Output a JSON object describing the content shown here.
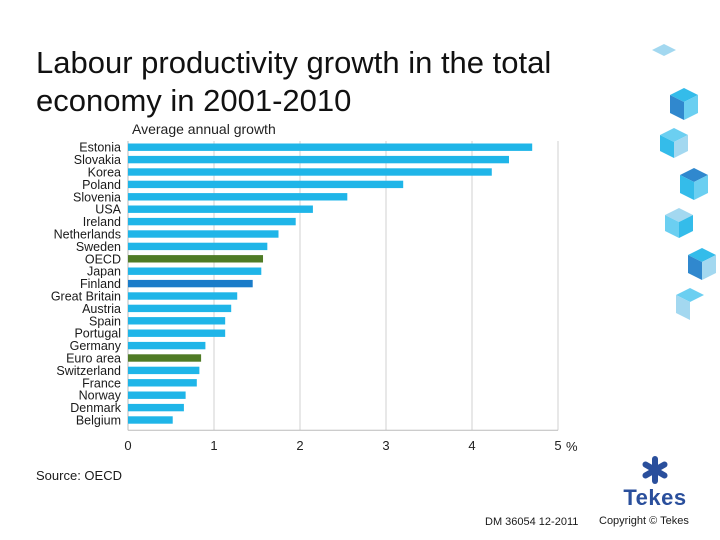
{
  "title": "Labour productivity growth in the total economy in 2001-2010",
  "subtitle": "Average annual growth",
  "source": "Source: OECD",
  "footer": {
    "code": "DM 36054 12-2011",
    "copyright": "Copyright © Tekes"
  },
  "logo": {
    "text": "Tekes",
    "icon": "asterisk-logo-icon"
  },
  "colors": {
    "bar": "#1fb5e8",
    "oecd_euro": "#4f7b26",
    "finland": "#1a7cc9",
    "logo": "#2a4f9c"
  },
  "chart_data": {
    "type": "bar",
    "orientation": "horizontal",
    "title": "Labour productivity growth in the total economy in 2001-2010",
    "subtitle": "Average annual growth",
    "xlabel": "%",
    "xlim": [
      0,
      5
    ],
    "xticks": [
      "0",
      "1",
      "2",
      "3",
      "4",
      "5"
    ],
    "grid": true,
    "categories": [
      "Estonia",
      "Slovakia",
      "Korea",
      "Poland",
      "Slovenia",
      "USA",
      "Ireland",
      "Netherlands",
      "Sweden",
      "OECD",
      "Japan",
      "Finland",
      "Great Britain",
      "Austria",
      "Spain",
      "Portugal",
      "Germany",
      "Euro area",
      "Switzerland",
      "France",
      "Norway",
      "Denmark",
      "Belgium"
    ],
    "values": [
      4.7,
      4.43,
      4.23,
      3.2,
      2.55,
      2.15,
      1.95,
      1.75,
      1.62,
      1.57,
      1.55,
      1.45,
      1.27,
      1.2,
      1.13,
      1.13,
      0.9,
      0.85,
      0.83,
      0.8,
      0.67,
      0.65,
      0.52
    ],
    "highlight": {
      "OECD": "#4f7b26",
      "Euro area": "#4f7b26",
      "Finland": "#1a7cc9"
    }
  }
}
